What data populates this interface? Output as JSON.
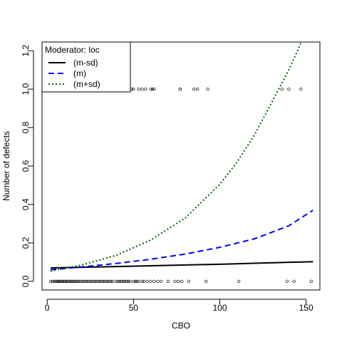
{
  "chart_data": {
    "type": "scatter",
    "xlabel": "CBO",
    "ylabel": "Number of defects",
    "xlim": [
      -3,
      158
    ],
    "ylim": [
      -0.045,
      1.245
    ],
    "x_ticks": [
      "0",
      "50",
      "100",
      "150"
    ],
    "y_ticks": [
      "0.0",
      "0.2",
      "0.4",
      "0.6",
      "0.8",
      "1.0",
      "1.2"
    ],
    "legend": {
      "title": "Moderator: loc",
      "position": "top-left",
      "entries": [
        "(m-sd)",
        "(m)",
        "(m+sd)"
      ]
    },
    "series": [
      {
        "name": "(m-sd)",
        "style": "solid",
        "color": "#000000",
        "x": [
          2,
          20,
          40,
          60,
          80,
          100,
          120,
          140,
          154
        ],
        "y": [
          0.07,
          0.073,
          0.077,
          0.081,
          0.085,
          0.089,
          0.094,
          0.099,
          0.102
        ]
      },
      {
        "name": "(m)",
        "style": "dashed",
        "color": "#0000ff",
        "x": [
          2,
          20,
          40,
          60,
          80,
          100,
          120,
          140,
          154
        ],
        "y": [
          0.06,
          0.075,
          0.093,
          0.115,
          0.142,
          0.177,
          0.221,
          0.289,
          0.37
        ]
      },
      {
        "name": "(m+sd)",
        "style": "dotted",
        "color": "#006400",
        "x": [
          2,
          20,
          40,
          60,
          80,
          100,
          110,
          120,
          130,
          140,
          145,
          150
        ],
        "y": [
          0.053,
          0.085,
          0.135,
          0.215,
          0.33,
          0.505,
          0.62,
          0.76,
          0.93,
          1.1,
          1.2,
          1.3
        ]
      }
    ],
    "observations": {
      "y0_x": [
        2,
        3,
        4,
        5,
        5,
        6,
        6,
        7,
        7,
        8,
        8,
        9,
        9,
        10,
        10,
        11,
        11,
        12,
        12,
        13,
        14,
        14,
        15,
        15,
        16,
        17,
        17,
        18,
        19,
        20,
        21,
        22,
        23,
        24,
        25,
        26,
        27,
        28,
        29,
        30,
        31,
        32,
        33,
        34,
        35,
        36,
        37,
        38,
        40,
        41,
        42,
        43,
        44,
        45,
        46,
        47,
        48,
        50,
        51,
        52,
        53,
        55,
        56,
        58,
        60,
        62,
        64,
        66,
        70,
        74,
        76,
        78,
        82,
        92,
        111,
        139,
        143,
        153
      ],
      "y1_x": [
        35,
        38,
        40,
        41,
        42,
        43,
        45,
        47,
        49,
        50,
        53,
        55,
        57,
        60,
        61,
        62,
        77,
        77,
        85,
        87,
        93,
        136,
        140,
        147
      ]
    }
  }
}
